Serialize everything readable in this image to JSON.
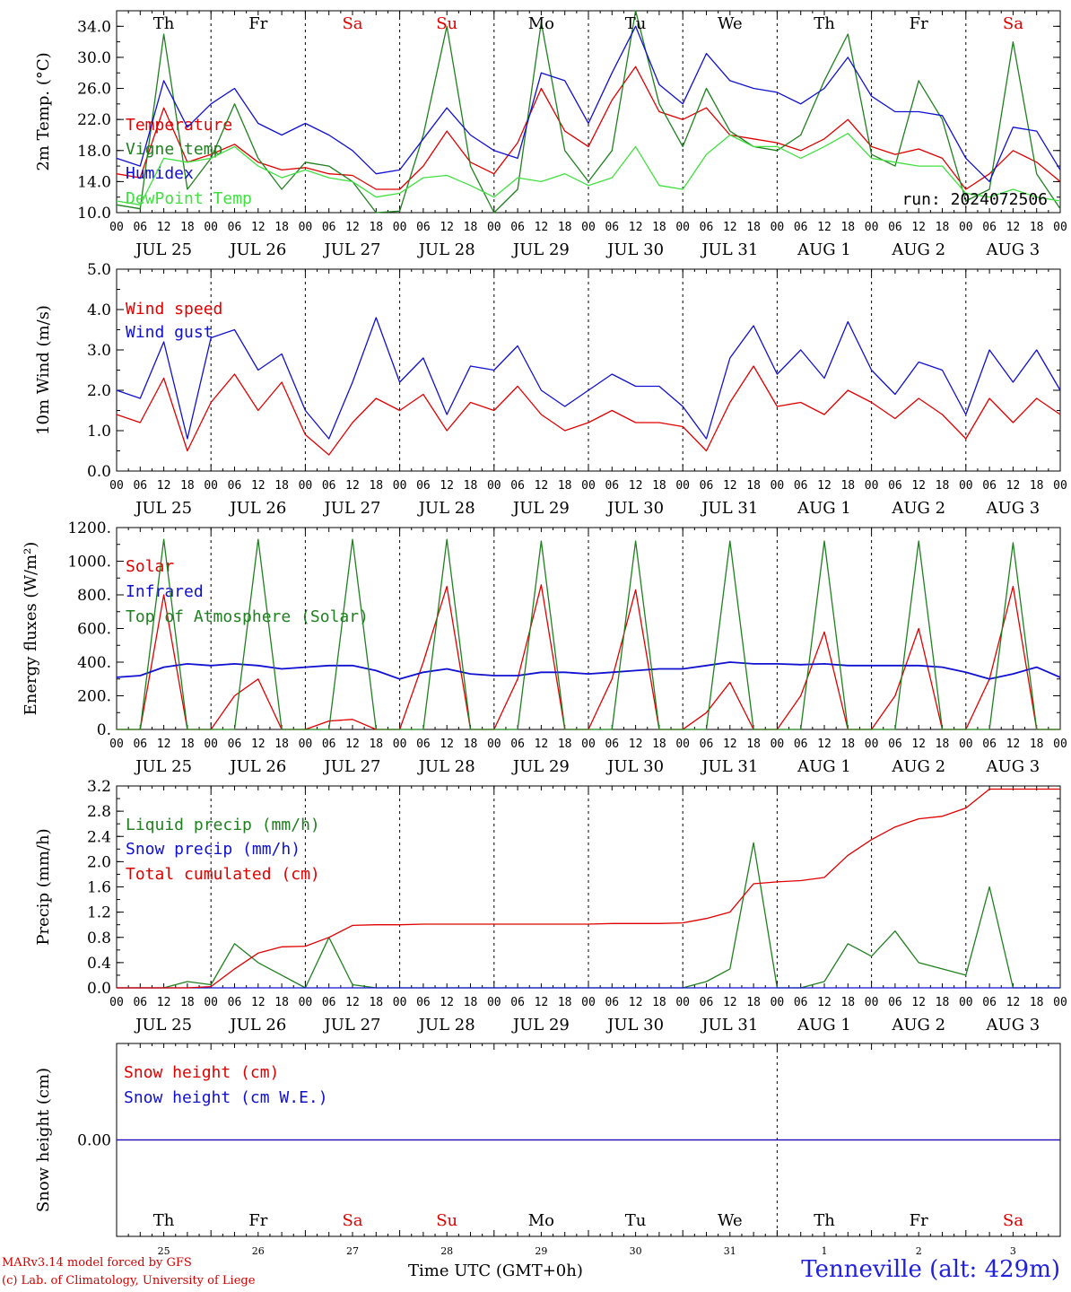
{
  "chart_data": [
    {
      "type": "line",
      "ylabel": "2m Temp. (°C)",
      "ylim": [
        10,
        36
      ],
      "yticks": [
        "10.0",
        "14.0",
        "18.0",
        "22.0",
        "26.0",
        "30.0",
        "34.0"
      ],
      "x_hours": [
        0,
        6,
        12,
        18,
        24,
        30,
        36,
        42,
        48,
        54,
        60,
        66,
        72,
        78,
        84,
        90,
        96,
        102,
        108,
        114,
        120,
        126,
        132,
        138,
        144,
        150,
        156,
        162,
        168,
        174,
        180,
        186,
        192,
        198,
        204,
        210,
        216,
        222,
        228,
        234,
        240
      ],
      "run_label": "run: 2024072506",
      "series": [
        {
          "name": "Temperature",
          "color": "#e00000",
          "values": [
            15,
            14.5,
            23.5,
            16.5,
            17.5,
            18.8,
            16.5,
            15.5,
            15.8,
            15,
            14.8,
            13,
            13,
            16,
            20.5,
            16.5,
            15,
            19,
            26,
            20.5,
            18.5,
            24.5,
            28.8,
            23,
            22,
            23.5,
            20,
            19.5,
            19,
            18,
            19.5,
            22,
            18.5,
            17.5,
            18.2,
            17,
            13,
            15,
            18,
            16.5,
            14
          ]
        },
        {
          "name": "Vigne temp",
          "color": "#208020",
          "values": [
            11,
            10.5,
            33,
            13,
            17,
            24,
            17,
            13,
            16.5,
            16,
            14,
            10,
            10.2,
            20,
            34,
            16,
            10,
            13,
            34.5,
            18,
            14,
            18,
            36,
            24,
            18.5,
            26,
            20.5,
            18.5,
            18,
            20,
            27,
            33,
            17.5,
            16,
            27,
            22,
            11.5,
            13,
            32,
            15,
            10.5
          ]
        },
        {
          "name": "Humidex",
          "color": "#1010d0",
          "values": [
            17,
            16,
            27,
            21,
            24,
            26,
            21.5,
            20,
            21.5,
            20,
            18,
            15,
            15.5,
            19.5,
            23.5,
            20,
            18,
            17,
            28,
            27,
            21.5,
            28,
            34,
            26.5,
            24,
            30.5,
            27,
            26,
            25.5,
            24,
            26,
            30,
            25,
            23,
            23,
            22.5,
            17,
            14,
            21,
            20.5,
            15.5
          ]
        },
        {
          "name": "DewPoint Temp",
          "color": "#40e040",
          "values": [
            11.5,
            11,
            17,
            16.5,
            17,
            18.5,
            16,
            14.5,
            15.5,
            14.5,
            14,
            12,
            12.5,
            14.5,
            14.8,
            13.5,
            12,
            14.5,
            14,
            15,
            13.5,
            14.5,
            18.5,
            13.5,
            13,
            17.5,
            20,
            18.5,
            18.5,
            17,
            18.5,
            20.2,
            17,
            16.5,
            16,
            16,
            12.5,
            12,
            13,
            12,
            11.5
          ]
        }
      ]
    },
    {
      "type": "line",
      "ylabel": "10m Wind (m/s)",
      "ylim": [
        0,
        5
      ],
      "yticks": [
        "0.0",
        "1.0",
        "2.0",
        "3.0",
        "4.0",
        "5.0"
      ],
      "x_hours": [
        0,
        6,
        12,
        18,
        24,
        30,
        36,
        42,
        48,
        54,
        60,
        66,
        72,
        78,
        84,
        90,
        96,
        102,
        108,
        114,
        120,
        126,
        132,
        138,
        144,
        150,
        156,
        162,
        168,
        174,
        180,
        186,
        192,
        198,
        204,
        210,
        216,
        222,
        228,
        234,
        240
      ],
      "series": [
        {
          "name": "Wind speed",
          "color": "#e00000",
          "values": [
            1.4,
            1.2,
            2.3,
            0.5,
            1.7,
            2.4,
            1.5,
            2.2,
            0.9,
            0.4,
            1.2,
            1.8,
            1.5,
            1.9,
            1.0,
            1.7,
            1.5,
            2.1,
            1.4,
            1.0,
            1.2,
            1.5,
            1.2,
            1.2,
            1.1,
            0.5,
            1.7,
            2.6,
            1.6,
            1.7,
            1.4,
            2.0,
            1.7,
            1.3,
            1.8,
            1.4,
            0.8,
            1.8,
            1.2,
            1.8,
            1.4
          ]
        },
        {
          "name": "Wind gust",
          "color": "#1010d0",
          "values": [
            2.0,
            1.8,
            3.2,
            0.8,
            3.3,
            3.5,
            2.5,
            2.9,
            1.5,
            0.8,
            2.2,
            3.8,
            2.2,
            2.8,
            1.4,
            2.6,
            2.5,
            3.1,
            2.0,
            1.6,
            2.0,
            2.4,
            2.1,
            2.1,
            1.6,
            0.8,
            2.8,
            3.6,
            2.4,
            3.0,
            2.3,
            3.7,
            2.5,
            1.9,
            2.7,
            2.5,
            1.4,
            3.0,
            2.2,
            3.0,
            2.0
          ]
        }
      ]
    },
    {
      "type": "line",
      "ylabel": "Energy fluxes (W/m²)",
      "ylim": [
        0,
        1200
      ],
      "yticks": [
        "0.",
        "200.",
        "400.",
        "600.",
        "800.",
        "1000.",
        "1200."
      ],
      "x_hours": [
        0,
        6,
        12,
        18,
        24,
        30,
        36,
        42,
        48,
        54,
        60,
        66,
        72,
        78,
        84,
        90,
        96,
        102,
        108,
        114,
        120,
        126,
        132,
        138,
        144,
        150,
        156,
        162,
        168,
        174,
        180,
        186,
        192,
        198,
        204,
        210,
        216,
        222,
        228,
        234,
        240
      ],
      "series": [
        {
          "name": "Solar",
          "color": "#e00000",
          "values": [
            0,
            0,
            800,
            0,
            0,
            200,
            300,
            0,
            0,
            50,
            60,
            0,
            0,
            400,
            850,
            0,
            0,
            300,
            860,
            0,
            0,
            300,
            830,
            0,
            0,
            100,
            280,
            0,
            0,
            200,
            580,
            0,
            0,
            200,
            600,
            0,
            0,
            300,
            850,
            0,
            0
          ]
        },
        {
          "name": "Infrared",
          "color": "#1010d0",
          "values": [
            310,
            320,
            370,
            390,
            380,
            390,
            380,
            360,
            370,
            380,
            380,
            350,
            300,
            340,
            360,
            330,
            320,
            320,
            340,
            340,
            330,
            340,
            350,
            360,
            360,
            380,
            400,
            390,
            390,
            385,
            390,
            380,
            380,
            380,
            380,
            370,
            340,
            300,
            330,
            370,
            310
          ]
        },
        {
          "name": "Top of Atmosphere (Solar)",
          "color": "#208020",
          "values": [
            0,
            0,
            1130,
            0,
            0,
            0,
            1130,
            0,
            0,
            0,
            1130,
            0,
            0,
            0,
            1130,
            0,
            0,
            0,
            1120,
            0,
            0,
            0,
            1120,
            0,
            0,
            0,
            1120,
            0,
            0,
            0,
            1120,
            0,
            0,
            0,
            1120,
            0,
            0,
            0,
            1110,
            0,
            0
          ]
        }
      ]
    },
    {
      "type": "line",
      "ylabel": "Precip (mm/h)",
      "ylim": [
        0,
        3.2
      ],
      "yticks": [
        "0.0",
        "0.4",
        "0.8",
        "1.2",
        "1.6",
        "2.0",
        "2.4",
        "2.8",
        "3.2"
      ],
      "x_hours": [
        0,
        6,
        12,
        18,
        24,
        30,
        36,
        42,
        48,
        54,
        60,
        66,
        72,
        78,
        84,
        90,
        96,
        102,
        108,
        114,
        120,
        126,
        132,
        138,
        144,
        150,
        156,
        162,
        168,
        174,
        180,
        186,
        192,
        198,
        204,
        210,
        216,
        222,
        228,
        234,
        240
      ],
      "series": [
        {
          "name": "Liquid precip (mm/h)",
          "color": "#208020",
          "values": [
            0,
            0,
            0,
            0.1,
            0.05,
            0.7,
            0.4,
            0.2,
            0,
            0.8,
            0.05,
            0,
            0,
            0,
            0,
            0,
            0,
            0,
            0,
            0,
            0,
            0,
            0,
            0,
            0,
            0.1,
            0.3,
            2.3,
            0,
            0,
            0.1,
            0.7,
            0.5,
            0.9,
            0.4,
            0.3,
            0.2,
            1.6,
            0,
            0,
            0
          ]
        },
        {
          "name": "Snow precip (mm/h)",
          "color": "#1010d0",
          "values": [
            0,
            0,
            0,
            0,
            0,
            0,
            0,
            0,
            0,
            0,
            0,
            0,
            0,
            0,
            0,
            0,
            0,
            0,
            0,
            0,
            0,
            0,
            0,
            0,
            0,
            0,
            0,
            0,
            0,
            0,
            0,
            0,
            0,
            0,
            0,
            0,
            0,
            0,
            0,
            0,
            0
          ]
        },
        {
          "name": "Total cumulated (cm)",
          "color": "#e00000",
          "values": [
            0,
            0,
            0,
            0,
            0.02,
            0.3,
            0.55,
            0.65,
            0.66,
            0.8,
            0.99,
            1.0,
            1.0,
            1.01,
            1.01,
            1.01,
            1.01,
            1.01,
            1.01,
            1.01,
            1.01,
            1.02,
            1.02,
            1.02,
            1.03,
            1.1,
            1.2,
            1.65,
            1.68,
            1.7,
            1.75,
            2.1,
            2.35,
            2.55,
            2.68,
            2.72,
            2.85,
            3.15,
            3.15,
            3.15,
            3.15
          ]
        }
      ]
    },
    {
      "type": "line",
      "ylabel": "Snow height (cm)",
      "ylim": [
        -1,
        1
      ],
      "yticks": [
        "0.00"
      ],
      "series": [
        {
          "name": "Snow height (cm)",
          "color": "#e00000",
          "values": [
            0,
            0
          ]
        },
        {
          "name": "Snow height (cm W.E.)",
          "color": "#1010d0",
          "values": [
            0,
            0
          ]
        }
      ]
    }
  ],
  "days": [
    "Th",
    "Fr",
    "Sa",
    "Su",
    "Mo",
    "Tu",
    "We",
    "Th",
    "Fr",
    "Sa"
  ],
  "day_colors": [
    "#000000",
    "#000000",
    "#e00000",
    "#e00000",
    "#000000",
    "#000000",
    "#000000",
    "#000000",
    "#000000",
    "#e00000"
  ],
  "dates": [
    "JUL 25",
    "JUL 26",
    "JUL 27",
    "JUL 28",
    "JUL 29",
    "JUL 30",
    "JUL 31",
    "AUG  1",
    "AUG  2",
    "AUG  3"
  ],
  "day_numbers": [
    "25",
    "26",
    "27",
    "28",
    "29",
    "30",
    "31",
    "1",
    "2",
    "3"
  ],
  "hour_ticks": [
    "00",
    "06",
    "12",
    "18"
  ],
  "footer_line1": "MARv3.14 model forced by GFS",
  "footer_line2": "(c) Lab. of Climatology, University of Liege",
  "time_label": "Time UTC (GMT+0h)",
  "station": "Tenneville (alt: 429m)"
}
